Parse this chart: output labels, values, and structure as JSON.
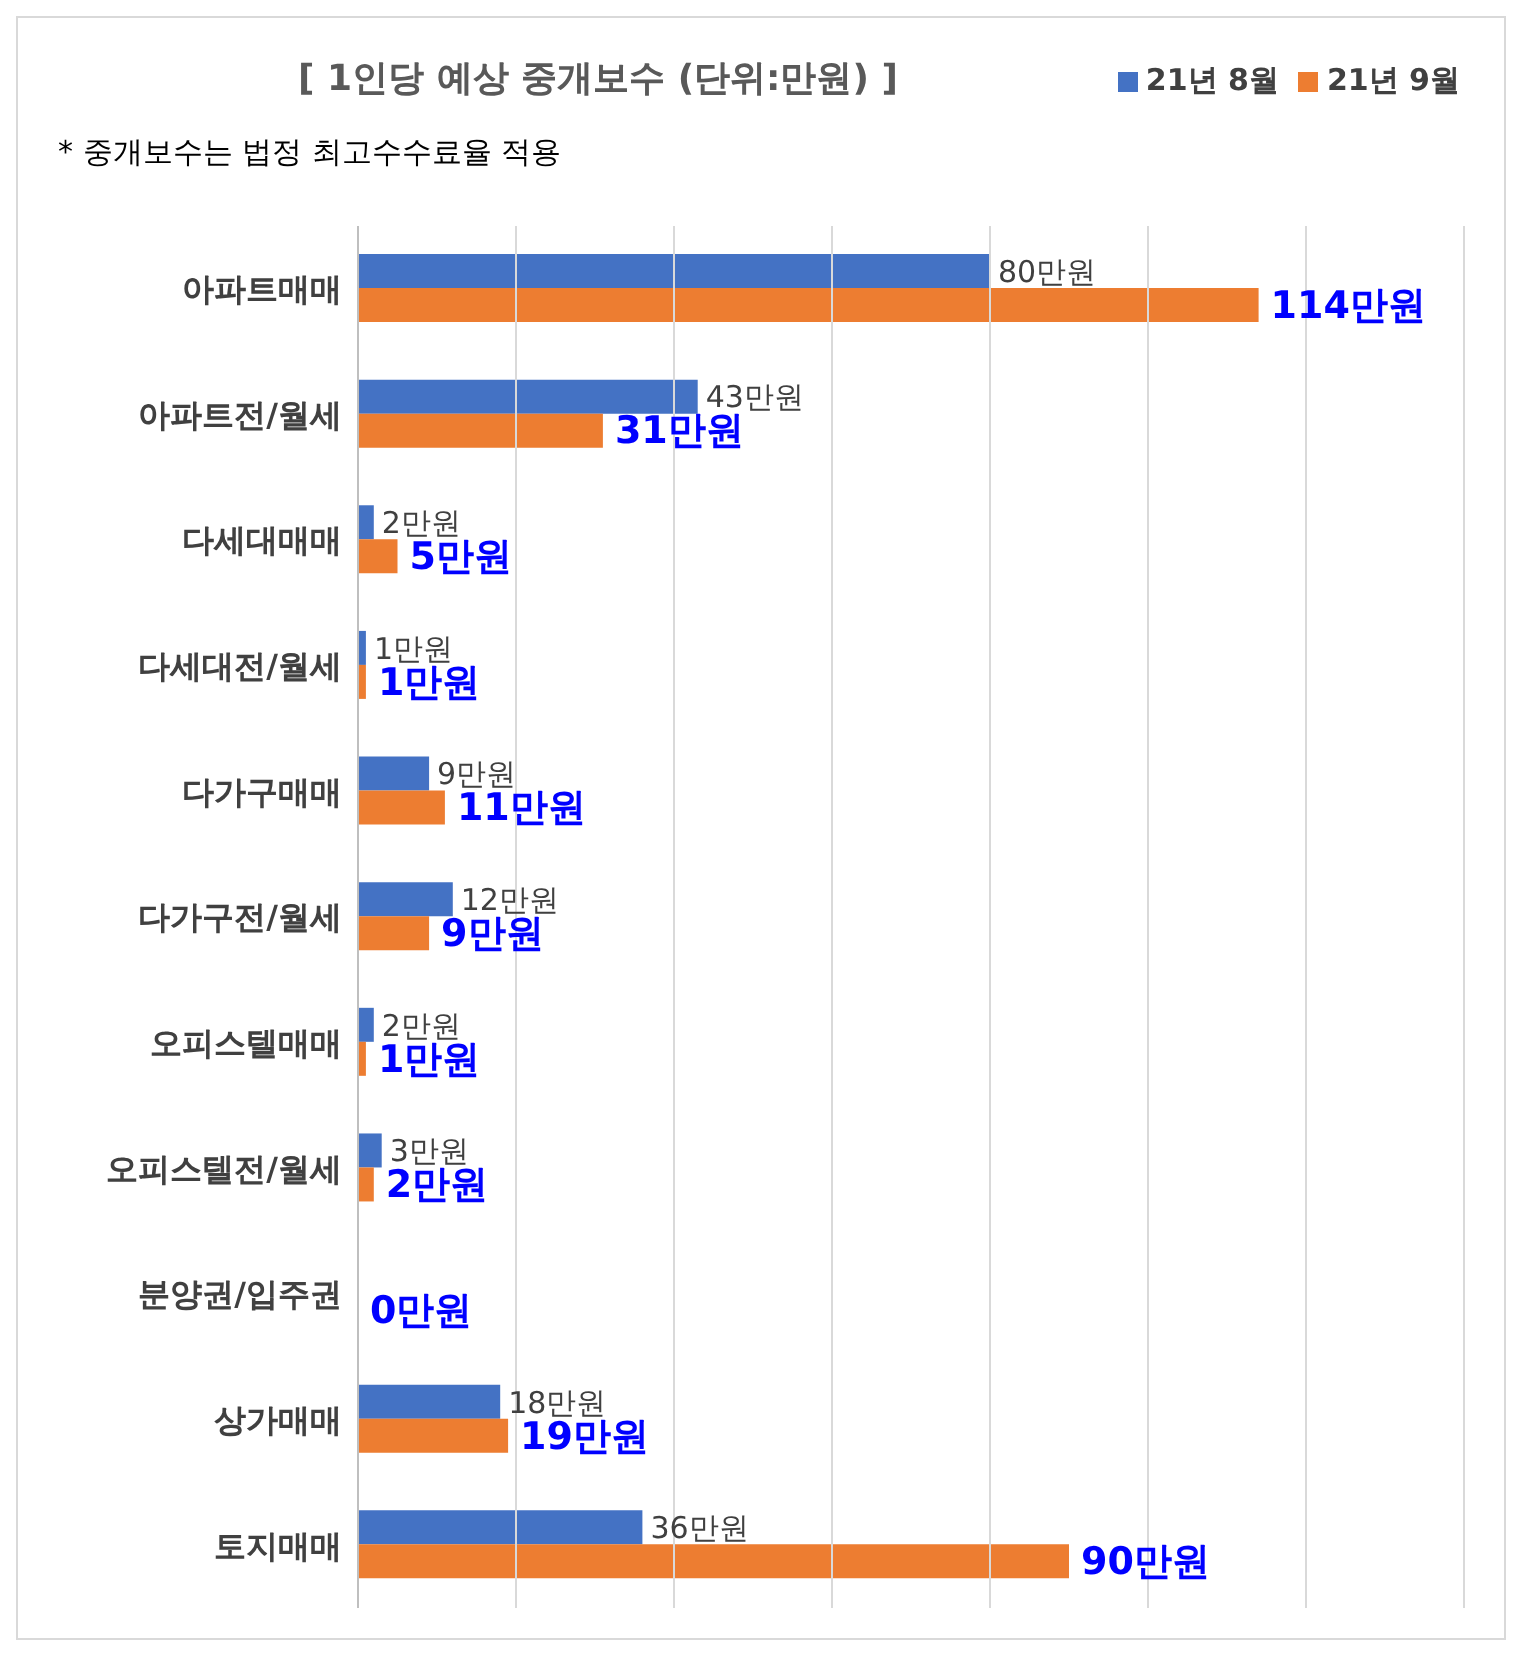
{
  "chart_data": {
    "type": "bar",
    "orientation": "horizontal",
    "title": "[ 1인당 예상 중개보수 (단위:만원) ]",
    "annotations": [
      "* 중개보수는 법정 최고수수료율 적용"
    ],
    "categories": [
      "아파트매매",
      "아파트전/월세",
      "다세대매매",
      "다세대전/월세",
      "다가구매매",
      "다가구전/월세",
      "오피스텔매매",
      "오피스텔전/월세",
      "분양권/입주권",
      "상가매매",
      "토지매매"
    ],
    "series": [
      {
        "name": "21년 8월",
        "color": "#4472c4",
        "values": [
          80,
          43,
          2,
          1,
          9,
          12,
          2,
          3,
          0,
          18,
          36
        ],
        "value_labels": [
          "80만원",
          "43만원",
          "2만원",
          "1만원",
          "9만원",
          "12만원",
          "2만원",
          "3만원",
          null,
          "18만원",
          "36만원"
        ]
      },
      {
        "name": "21년 9월",
        "color": "#ed7d31",
        "values": [
          114,
          31,
          5,
          1,
          11,
          9,
          1,
          2,
          0,
          19,
          90
        ],
        "value_labels": [
          "114만원",
          "31만원",
          "5만원",
          "1만원",
          "11만원",
          "9만원",
          "1만원",
          "2만원",
          "0만원",
          "19만원",
          "90만원"
        ]
      }
    ],
    "xlim": [
      0,
      140
    ],
    "xticks": [
      {
        "value": 0,
        "label": null
      },
      {
        "value": 20,
        "label": null
      },
      {
        "value": 40,
        "label": null
      },
      {
        "value": 60,
        "label": null
      },
      {
        "value": 80,
        "label": null
      },
      {
        "value": 100,
        "label": null
      },
      {
        "value": 120,
        "label": null
      },
      {
        "value": 140,
        "label": null
      }
    ],
    "tick_labels": "y",
    "grid": "x",
    "legend": "top right"
  }
}
